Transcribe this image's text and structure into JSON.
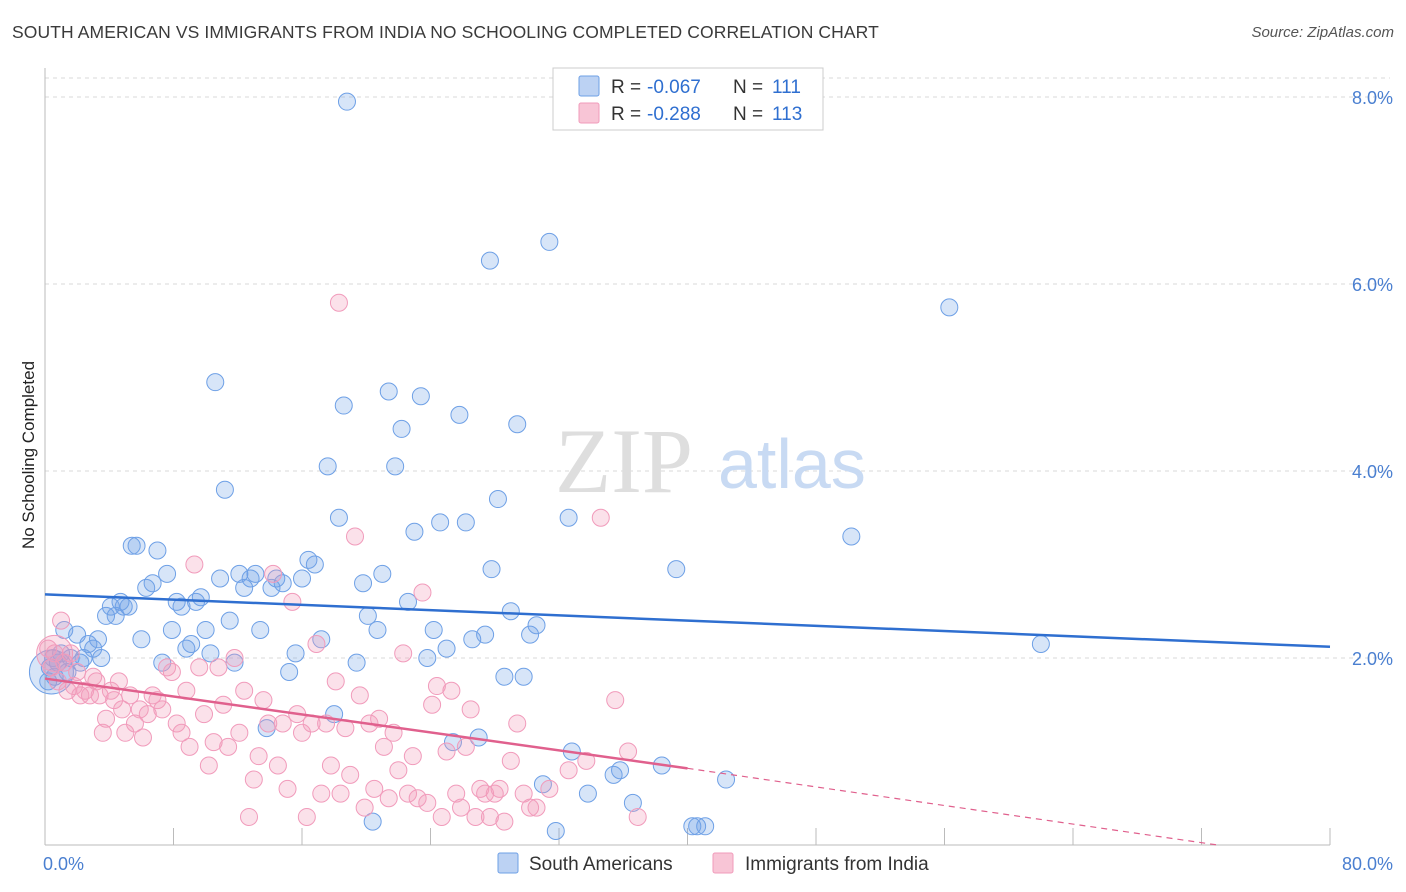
{
  "header": {
    "title": "SOUTH AMERICAN VS IMMIGRANTS FROM INDIA NO SCHOOLING COMPLETED CORRELATION CHART",
    "source": "Source: ZipAtlas.com"
  },
  "watermark": {
    "zip": "ZIP",
    "atlas": "atlas"
  },
  "chart_data": {
    "type": "scatter",
    "ylabel": "No Schooling Completed",
    "xlim": [
      0,
      80
    ],
    "ylim": [
      0,
      8.0
    ],
    "x_tick_labels": [
      "0.0%",
      "80.0%"
    ],
    "y_ticks": [
      2.0,
      4.0,
      6.0,
      8.0
    ],
    "y_tick_labels": [
      "2.0%",
      "4.0%",
      "6.0%",
      "8.0%"
    ],
    "grid": true,
    "legend_position": "top-center",
    "colors": {
      "blue": "#6ea0e6",
      "blue_line": "#2f6fd0",
      "pink": "#f19bbb",
      "pink_line": "#e0608d"
    },
    "stats": [
      {
        "r_label": "R =",
        "r_value": "-0.067",
        "n_label": "N =",
        "n_value": "111"
      },
      {
        "r_label": "R =",
        "r_value": "-0.288",
        "n_label": "N =",
        "n_value": "113"
      }
    ],
    "series": [
      {
        "name": "South Americans",
        "trend": {
          "x": [
            0,
            80
          ],
          "y": [
            2.68,
            2.12
          ]
        },
        "points": [
          [
            0.2,
            1.75
          ],
          [
            0.3,
            1.9
          ],
          [
            0.5,
            2.0
          ],
          [
            0.6,
            1.8
          ],
          [
            0.8,
            1.95
          ],
          [
            1.0,
            2.05
          ],
          [
            1.2,
            2.3
          ],
          [
            1.4,
            1.85
          ],
          [
            1.6,
            2.0
          ],
          [
            2.0,
            2.25
          ],
          [
            2.2,
            1.95
          ],
          [
            2.4,
            2.0
          ],
          [
            2.7,
            2.15
          ],
          [
            3.0,
            2.1
          ],
          [
            3.3,
            2.2
          ],
          [
            3.5,
            2.0
          ],
          [
            3.8,
            2.45
          ],
          [
            4.1,
            2.55
          ],
          [
            4.4,
            2.45
          ],
          [
            4.7,
            2.6
          ],
          [
            4.9,
            2.55
          ],
          [
            5.2,
            2.55
          ],
          [
            5.4,
            3.2
          ],
          [
            5.7,
            3.2
          ],
          [
            6.0,
            2.2
          ],
          [
            6.3,
            2.75
          ],
          [
            6.7,
            2.8
          ],
          [
            7.0,
            3.15
          ],
          [
            7.3,
            1.95
          ],
          [
            7.6,
            2.9
          ],
          [
            7.9,
            2.3
          ],
          [
            8.2,
            2.6
          ],
          [
            8.5,
            2.55
          ],
          [
            8.8,
            2.1
          ],
          [
            9.1,
            2.15
          ],
          [
            9.4,
            2.6
          ],
          [
            9.7,
            2.65
          ],
          [
            10.0,
            2.3
          ],
          [
            10.3,
            2.05
          ],
          [
            10.6,
            4.95
          ],
          [
            10.9,
            2.85
          ],
          [
            11.2,
            3.8
          ],
          [
            11.5,
            2.4
          ],
          [
            11.8,
            1.95
          ],
          [
            12.1,
            2.9
          ],
          [
            12.4,
            2.75
          ],
          [
            12.8,
            2.85
          ],
          [
            13.1,
            2.9
          ],
          [
            13.4,
            2.3
          ],
          [
            13.8,
            1.25
          ],
          [
            14.1,
            2.75
          ],
          [
            14.4,
            2.85
          ],
          [
            14.8,
            2.8
          ],
          [
            15.2,
            1.85
          ],
          [
            15.6,
            2.05
          ],
          [
            16.0,
            2.85
          ],
          [
            16.4,
            3.05
          ],
          [
            16.8,
            3.0
          ],
          [
            17.2,
            2.2
          ],
          [
            17.6,
            4.05
          ],
          [
            18.0,
            1.4
          ],
          [
            18.3,
            3.5
          ],
          [
            18.6,
            4.7
          ],
          [
            18.8,
            7.95
          ],
          [
            19.4,
            1.95
          ],
          [
            19.8,
            2.8
          ],
          [
            20.1,
            2.45
          ],
          [
            20.4,
            0.25
          ],
          [
            20.7,
            2.3
          ],
          [
            21.0,
            2.9
          ],
          [
            21.4,
            4.85
          ],
          [
            21.8,
            4.05
          ],
          [
            22.2,
            4.45
          ],
          [
            22.6,
            2.6
          ],
          [
            23.0,
            3.35
          ],
          [
            23.4,
            4.8
          ],
          [
            23.8,
            2.0
          ],
          [
            24.2,
            2.3
          ],
          [
            24.6,
            3.45
          ],
          [
            25.0,
            2.1
          ],
          [
            25.4,
            1.1
          ],
          [
            25.8,
            4.6
          ],
          [
            26.2,
            3.45
          ],
          [
            26.6,
            2.2
          ],
          [
            27.0,
            1.15
          ],
          [
            27.4,
            2.25
          ],
          [
            27.8,
            2.95
          ],
          [
            28.2,
            3.7
          ],
          [
            28.6,
            1.8
          ],
          [
            29.0,
            2.5
          ],
          [
            29.4,
            4.5
          ],
          [
            29.8,
            1.8
          ],
          [
            30.2,
            2.25
          ],
          [
            30.6,
            2.35
          ],
          [
            31.0,
            0.65
          ],
          [
            31.4,
            6.45
          ],
          [
            31.8,
            0.15
          ],
          [
            32.6,
            3.5
          ],
          [
            32.8,
            1.0
          ],
          [
            33.8,
            0.55
          ],
          [
            35.4,
            0.75
          ],
          [
            35.8,
            0.8
          ],
          [
            36.6,
            0.45
          ],
          [
            27.7,
            6.25
          ],
          [
            38.4,
            0.85
          ],
          [
            39.3,
            2.95
          ],
          [
            40.3,
            0.2
          ],
          [
            40.6,
            0.2
          ],
          [
            41.1,
            0.2
          ],
          [
            42.4,
            0.7
          ],
          [
            50.2,
            3.3
          ],
          [
            56.3,
            5.75
          ],
          [
            62.0,
            2.15
          ]
        ]
      },
      {
        "name": "Immigrants from India",
        "trend": {
          "x": [
            0,
            40
          ],
          "y": [
            1.78,
            0.82
          ]
        },
        "trend_dashed": {
          "x": [
            40,
            73
          ],
          "y": [
            0.82,
            0.0
          ]
        },
        "points": [
          [
            0.2,
            2.1
          ],
          [
            0.4,
            1.9
          ],
          [
            0.6,
            2.05
          ],
          [
            0.8,
            1.75
          ],
          [
            1.0,
            2.4
          ],
          [
            1.2,
            1.95
          ],
          [
            1.4,
            1.65
          ],
          [
            1.6,
            2.05
          ],
          [
            1.8,
            1.7
          ],
          [
            2.0,
            1.85
          ],
          [
            2.2,
            1.6
          ],
          [
            2.5,
            1.65
          ],
          [
            2.8,
            1.6
          ],
          [
            3.0,
            1.8
          ],
          [
            3.2,
            1.75
          ],
          [
            3.4,
            1.6
          ],
          [
            3.6,
            1.2
          ],
          [
            3.8,
            1.35
          ],
          [
            4.1,
            1.65
          ],
          [
            4.3,
            1.55
          ],
          [
            4.6,
            1.75
          ],
          [
            4.8,
            1.45
          ],
          [
            5.0,
            1.2
          ],
          [
            5.3,
            1.6
          ],
          [
            5.6,
            1.3
          ],
          [
            5.9,
            1.45
          ],
          [
            6.1,
            1.15
          ],
          [
            6.4,
            1.4
          ],
          [
            6.7,
            1.6
          ],
          [
            7.0,
            1.55
          ],
          [
            7.3,
            1.45
          ],
          [
            7.6,
            1.9
          ],
          [
            7.9,
            1.85
          ],
          [
            8.2,
            1.3
          ],
          [
            8.5,
            1.2
          ],
          [
            8.8,
            1.65
          ],
          [
            9.0,
            1.05
          ],
          [
            9.3,
            3.0
          ],
          [
            9.6,
            1.9
          ],
          [
            9.9,
            1.4
          ],
          [
            10.2,
            0.85
          ],
          [
            10.5,
            1.1
          ],
          [
            10.8,
            1.9
          ],
          [
            11.1,
            1.5
          ],
          [
            11.4,
            1.05
          ],
          [
            11.8,
            2.0
          ],
          [
            12.1,
            1.2
          ],
          [
            12.4,
            1.65
          ],
          [
            12.7,
            0.3
          ],
          [
            13.0,
            0.7
          ],
          [
            13.3,
            0.95
          ],
          [
            13.6,
            1.55
          ],
          [
            13.9,
            1.3
          ],
          [
            14.2,
            2.9
          ],
          [
            14.5,
            0.85
          ],
          [
            14.8,
            1.3
          ],
          [
            15.1,
            0.6
          ],
          [
            15.4,
            2.6
          ],
          [
            15.7,
            1.4
          ],
          [
            16.0,
            1.2
          ],
          [
            16.3,
            0.3
          ],
          [
            16.6,
            1.3
          ],
          [
            16.9,
            2.15
          ],
          [
            17.2,
            0.55
          ],
          [
            17.5,
            1.3
          ],
          [
            17.8,
            0.85
          ],
          [
            18.1,
            1.75
          ],
          [
            18.4,
            0.55
          ],
          [
            18.7,
            1.25
          ],
          [
            19.0,
            0.75
          ],
          [
            19.3,
            3.3
          ],
          [
            19.6,
            1.6
          ],
          [
            19.9,
            0.4
          ],
          [
            20.2,
            1.3
          ],
          [
            20.5,
            0.6
          ],
          [
            20.8,
            1.35
          ],
          [
            21.1,
            1.05
          ],
          [
            21.4,
            0.5
          ],
          [
            21.7,
            1.2
          ],
          [
            22.0,
            0.8
          ],
          [
            22.3,
            2.05
          ],
          [
            22.6,
            0.55
          ],
          [
            22.9,
            0.95
          ],
          [
            23.2,
            0.5
          ],
          [
            23.5,
            2.7
          ],
          [
            23.8,
            0.45
          ],
          [
            24.1,
            1.5
          ],
          [
            24.4,
            1.7
          ],
          [
            24.7,
            0.3
          ],
          [
            25.0,
            1.0
          ],
          [
            25.3,
            1.65
          ],
          [
            25.6,
            0.55
          ],
          [
            25.9,
            0.4
          ],
          [
            26.2,
            1.05
          ],
          [
            26.5,
            1.45
          ],
          [
            26.8,
            0.3
          ],
          [
            27.1,
            0.6
          ],
          [
            27.4,
            0.55
          ],
          [
            27.7,
            0.3
          ],
          [
            28.0,
            0.55
          ],
          [
            28.3,
            0.6
          ],
          [
            28.6,
            0.25
          ],
          [
            29.0,
            0.9
          ],
          [
            29.4,
            1.3
          ],
          [
            29.8,
            0.55
          ],
          [
            30.2,
            0.4
          ],
          [
            30.6,
            0.4
          ],
          [
            31.4,
            0.6
          ],
          [
            32.6,
            0.8
          ],
          [
            33.7,
            0.9
          ],
          [
            18.3,
            5.8
          ],
          [
            34.6,
            3.5
          ],
          [
            35.5,
            1.55
          ],
          [
            36.3,
            1.0
          ],
          [
            36.9,
            0.3
          ]
        ]
      }
    ]
  }
}
